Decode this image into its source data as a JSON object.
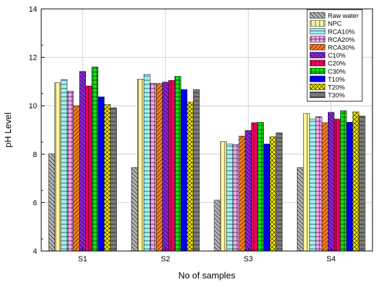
{
  "chart_data": {
    "type": "bar",
    "xlabel": "No of samples",
    "ylabel": "pH Level",
    "ylim": [
      4,
      14
    ],
    "yticks": [
      4,
      6,
      8,
      10,
      12,
      14
    ],
    "grid": true,
    "legend_position": "top-right",
    "categories": [
      "S1",
      "S2",
      "S3",
      "S4"
    ],
    "series": [
      {
        "name": "Raw water",
        "color": "#b3b3b3",
        "pattern": "diag-left",
        "values": [
          8.02,
          7.45,
          6.1,
          7.45
        ]
      },
      {
        "name": "NPC",
        "color": "#fff5a0",
        "pattern": "vertical",
        "values": [
          10.95,
          11.1,
          8.52,
          9.68
        ]
      },
      {
        "name": "RCA10%",
        "color": "#9ff2f2",
        "pattern": "horizontal",
        "values": [
          11.08,
          11.3,
          8.42,
          9.45
        ]
      },
      {
        "name": "RCA20%",
        "color": "#f7a6f0",
        "pattern": "grid",
        "values": [
          10.6,
          10.93,
          8.4,
          9.55
        ]
      },
      {
        "name": "RCA30%",
        "color": "#f47f1f",
        "pattern": "diag-right",
        "values": [
          10.0,
          10.92,
          8.75,
          9.3
        ]
      },
      {
        "name": "C10%",
        "color": "#8a22d6",
        "pattern": "diag-left",
        "values": [
          11.42,
          10.98,
          8.98,
          9.73
        ]
      },
      {
        "name": "C20%",
        "color": "#e8005e",
        "pattern": "vertical",
        "values": [
          10.82,
          11.05,
          9.3,
          9.45
        ]
      },
      {
        "name": "C30%",
        "color": "#16dd16",
        "pattern": "grid",
        "values": [
          11.6,
          11.22,
          9.32,
          9.8
        ]
      },
      {
        "name": "T10%",
        "color": "#0000e6",
        "pattern": "none",
        "values": [
          10.37,
          10.67,
          8.42,
          9.32
        ]
      },
      {
        "name": "T20%",
        "color": "#f2e600",
        "pattern": "crosshatch",
        "values": [
          10.05,
          10.15,
          8.72,
          9.75
        ]
      },
      {
        "name": "T30%",
        "color": "#7a7a7a",
        "pattern": "horizontal",
        "values": [
          9.92,
          10.67,
          8.88,
          9.58
        ]
      }
    ]
  }
}
